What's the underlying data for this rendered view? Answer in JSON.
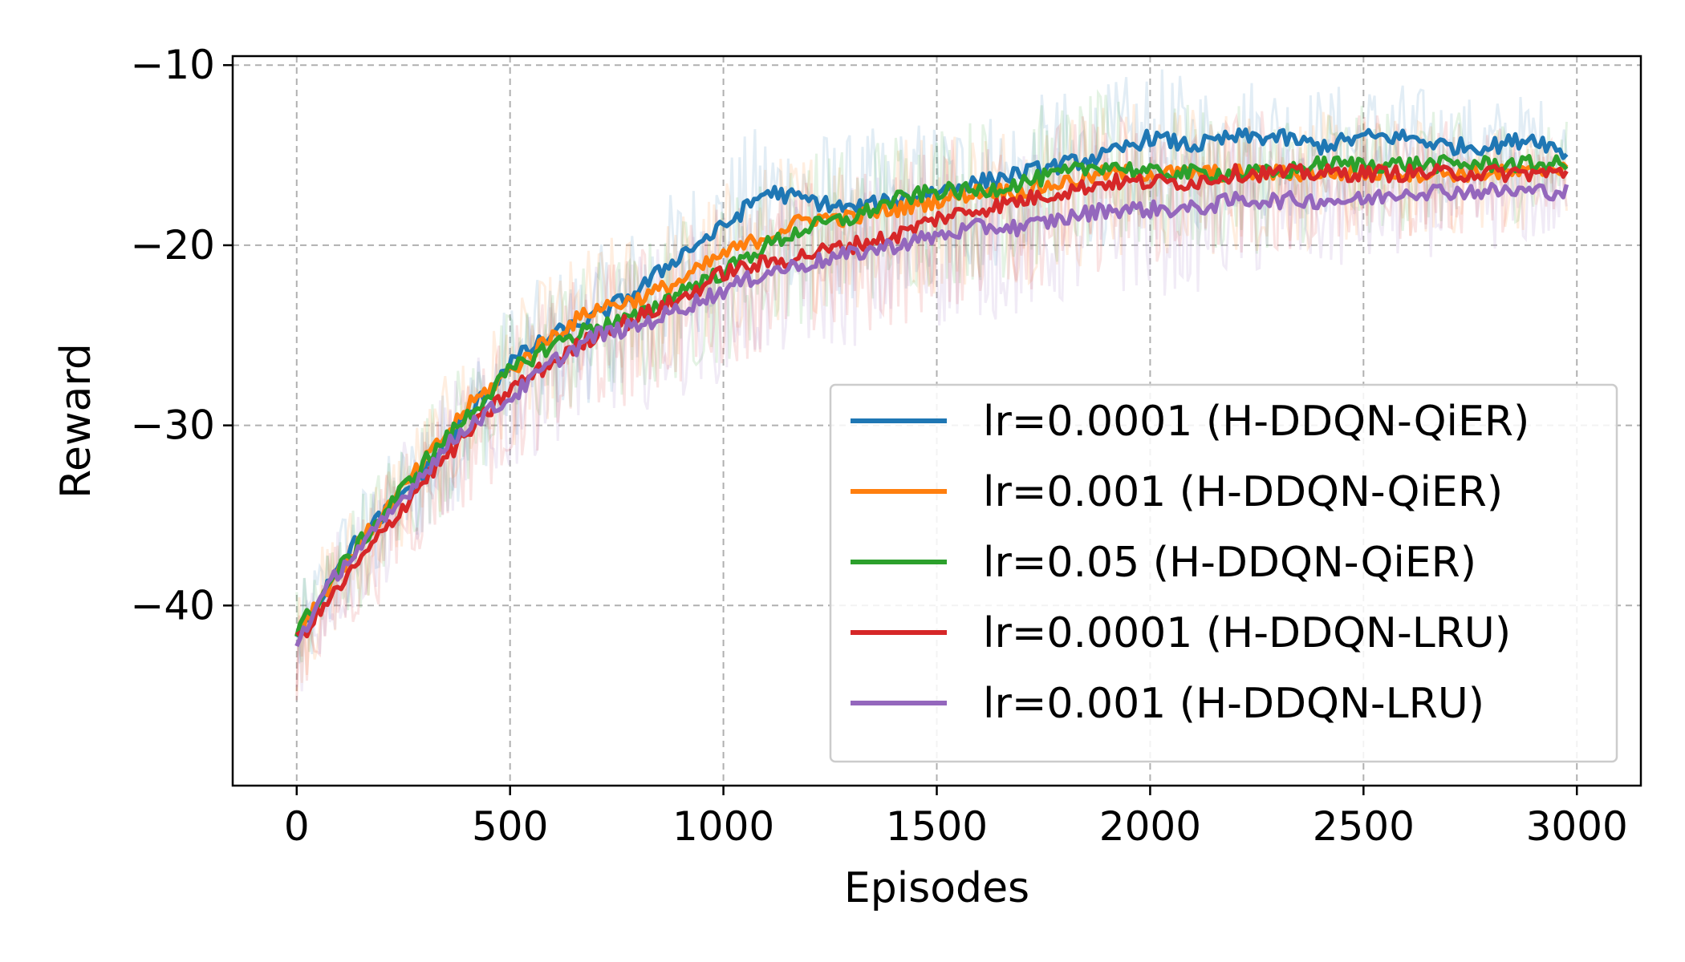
{
  "chart_data": {
    "type": "line",
    "title": "",
    "xlabel": "Episodes",
    "ylabel": "Reward",
    "xlim": [
      -150,
      3150
    ],
    "ylim": [
      -50,
      -9.5
    ],
    "xticks": [
      0,
      500,
      1000,
      1500,
      2000,
      2500,
      3000
    ],
    "xtick_labels": [
      "0",
      "500",
      "1000",
      "1500",
      "2000",
      "2500",
      "3000"
    ],
    "yticks": [
      -40,
      -30,
      -20,
      -10
    ],
    "ytick_labels": [
      "−40",
      "−30",
      "−20",
      "−10"
    ],
    "grid": true,
    "legend_position": "lower-right",
    "x": [
      0,
      100,
      200,
      300,
      400,
      500,
      600,
      700,
      800,
      900,
      1000,
      1100,
      1200,
      1300,
      1400,
      1500,
      1600,
      1700,
      1800,
      1900,
      2000,
      2100,
      2200,
      2300,
      2400,
      2500,
      2600,
      2700,
      2800,
      2900,
      2980
    ],
    "series": [
      {
        "name": "lr=0.0001 (H-DDQN-QiER)",
        "color": "#1f77b4",
        "values": [
          -42,
          -37.5,
          -35,
          -32.5,
          -29.5,
          -26.5,
          -25,
          -24,
          -22.5,
          -20.5,
          -19,
          -17,
          -17.5,
          -18,
          -17.5,
          -17,
          -16.5,
          -16,
          -15.5,
          -15,
          -14,
          -14.5,
          -14,
          -14,
          -14.5,
          -14,
          -14,
          -14.5,
          -14.5,
          -14,
          -15
        ]
      },
      {
        "name": "lr=0.001 (H-DDQN-QiER)",
        "color": "#ff7f0e",
        "values": [
          -41.5,
          -38,
          -35,
          -32,
          -29,
          -27,
          -25,
          -23.5,
          -23,
          -22,
          -20.5,
          -19.5,
          -18.5,
          -18.5,
          -18,
          -17.5,
          -17,
          -17,
          -16.5,
          -16,
          -16,
          -16,
          -16,
          -16,
          -16,
          -16,
          -16,
          -16,
          -16,
          -16,
          -15.5
        ]
      },
      {
        "name": "lr=0.05 (H-DDQN-QiER)",
        "color": "#2ca02c",
        "values": [
          -41.5,
          -38,
          -35,
          -32,
          -29.5,
          -27,
          -25.5,
          -24.5,
          -24,
          -22.5,
          -21.5,
          -20,
          -19,
          -18.5,
          -17.5,
          -17,
          -17,
          -16.5,
          -16,
          -15.5,
          -16,
          -16,
          -16,
          -16,
          -15.5,
          -15.5,
          -15.5,
          -15.5,
          -15.5,
          -15.5,
          -15.5
        ]
      },
      {
        "name": "lr=0.0001 (H-DDQN-LRU)",
        "color": "#d62728",
        "values": [
          -42,
          -39,
          -36,
          -33,
          -30.5,
          -28,
          -26.5,
          -25,
          -24,
          -23,
          -21.5,
          -21,
          -20.5,
          -20,
          -19.5,
          -18.5,
          -18,
          -17.5,
          -17,
          -16.5,
          -16.5,
          -16.5,
          -16,
          -16,
          -16,
          -16,
          -16,
          -16,
          -16,
          -16,
          -16
        ]
      },
      {
        "name": "lr=0.001 (H-DDQN-LRU)",
        "color": "#9467bd",
        "values": [
          -42,
          -38,
          -35.5,
          -32.5,
          -30,
          -28.5,
          -26.5,
          -25,
          -24.5,
          -23.5,
          -22.5,
          -21.5,
          -21,
          -20.5,
          -20,
          -19.5,
          -19,
          -19,
          -18.5,
          -18,
          -18,
          -18,
          -17.5,
          -17.5,
          -17.5,
          -17.5,
          -17,
          -17,
          -17,
          -17,
          -17
        ]
      }
    ]
  }
}
